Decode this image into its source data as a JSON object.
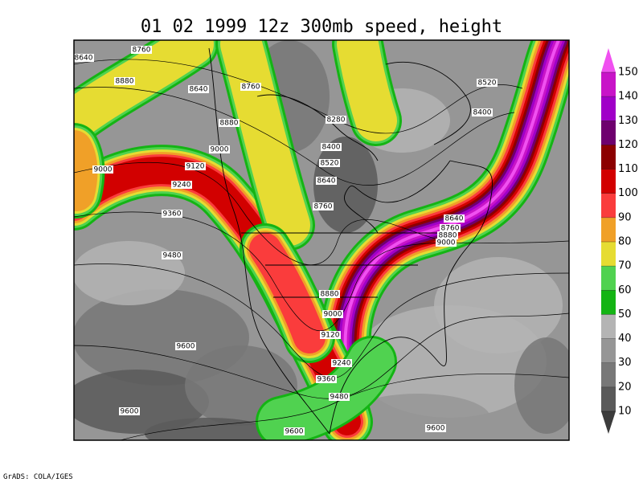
{
  "header": {
    "title": "01 02 1999 12z 300mb speed, height"
  },
  "map": {
    "contour_labels": [
      "8640",
      "8760",
      "8880",
      "8640",
      "8760",
      "8880",
      "9000",
      "9120",
      "9000",
      "9240",
      "9360",
      "9480",
      "8520",
      "8400",
      "8280",
      "8400",
      "8520",
      "8640",
      "8760",
      "8640",
      "8760",
      "8880",
      "9000",
      "8880",
      "9000",
      "9120",
      "9240",
      "9360",
      "9480",
      "9600",
      "9600",
      "9600",
      "9600"
    ]
  },
  "colorbar": {
    "levels": [
      10,
      20,
      30,
      40,
      50,
      60,
      70,
      80,
      90,
      100,
      110,
      120,
      130,
      140,
      150
    ],
    "colors": [
      "#3c3c3c",
      "#5a5a5a",
      "#787878",
      "#969696",
      "#b4b4b4",
      "#14b414",
      "#50d250",
      "#e6dc32",
      "#f0a028",
      "#fa3c3c",
      "#d20000",
      "#8c0000",
      "#6e006e",
      "#a000c8",
      "#c814c8",
      "#f050f0"
    ]
  },
  "footer": {
    "text": "GrADS: COLA/IGES"
  }
}
